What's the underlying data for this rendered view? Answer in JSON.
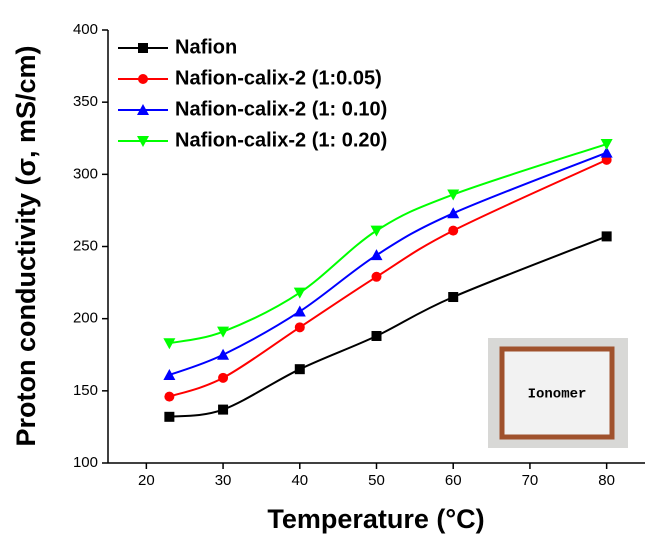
{
  "chart_data": {
    "type": "line",
    "x_label": "Temperature (°C)",
    "y_label": "Proton conductivity (σ, mS/cm)",
    "x": [
      23,
      30,
      40,
      50,
      60,
      80
    ],
    "series": [
      {
        "name": "Nafion",
        "color": "#000000",
        "marker": "square",
        "values": [
          132,
          137,
          165,
          188,
          215,
          257
        ]
      },
      {
        "name": "Nafion-calix-2 (1:0.05)",
        "color": "#ff0000",
        "marker": "circle",
        "values": [
          146,
          159,
          194,
          229,
          261,
          310
        ]
      },
      {
        "name": "Nafion-calix-2 (1: 0.10)",
        "color": "#0000ff",
        "marker": "triangle-up",
        "values": [
          161,
          175,
          205,
          244,
          273,
          315
        ]
      },
      {
        "name": "Nafion-calix-2 (1: 0.20)",
        "color": "#00ff00",
        "marker": "triangle-down",
        "values": [
          183,
          191,
          218,
          261,
          286,
          321
        ]
      }
    ],
    "xlim": [
      15,
      85
    ],
    "xticks": [
      20,
      30,
      40,
      50,
      60,
      70,
      80
    ],
    "ylim": [
      100,
      400
    ],
    "yticks": [
      100,
      150,
      200,
      250,
      300,
      350,
      400
    ],
    "legend": "upper left",
    "inset_label": "Ionomer"
  }
}
